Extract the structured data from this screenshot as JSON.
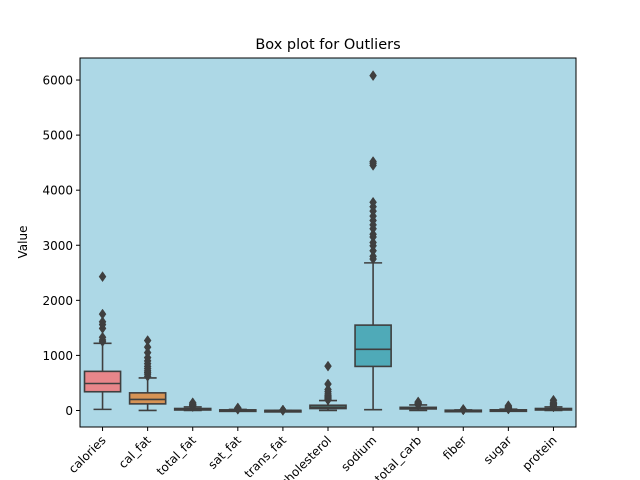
{
  "chart_data": {
    "type": "box",
    "title": "Box plot for Outliers",
    "xlabel": "",
    "ylabel": "Value",
    "ylim": [
      -300,
      6400
    ],
    "yticks": [
      0,
      1000,
      2000,
      3000,
      4000,
      5000,
      6000
    ],
    "categories": [
      "calories",
      "cal_fat",
      "total_fat",
      "sat_fat",
      "trans_fat",
      "cholesterol",
      "sodium",
      "total_carb",
      "fiber",
      "sugar",
      "protein"
    ],
    "background_color": "#add8e6",
    "boxes": [
      {
        "name": "calories",
        "color": "#e8868a",
        "whisker_low": 20,
        "q1": 340,
        "median": 490,
        "q3": 710,
        "whisker_high": 1220,
        "outliers": [
          1250,
          1280,
          1330,
          1490,
          1560,
          1610,
          1750,
          2430
        ]
      },
      {
        "name": "cal_fat",
        "color": "#d69355",
        "whisker_low": 0,
        "q1": 120,
        "median": 200,
        "q3": 320,
        "whisker_high": 590,
        "outliers": [
          620,
          660,
          690,
          720,
          760,
          800,
          850,
          900,
          960,
          1050,
          1150,
          1270
        ]
      },
      {
        "name": "total_fat",
        "color": "#a0a35a",
        "whisker_low": 0,
        "q1": 14,
        "median": 23,
        "q3": 36,
        "whisker_high": 65,
        "outliers": [
          70,
          80,
          90,
          100,
          110,
          120,
          141
        ]
      },
      {
        "name": "sat_fat",
        "color": "#5fae63",
        "whisker_low": 0,
        "q1": 4,
        "median": 7,
        "q3": 11,
        "whisker_high": 20,
        "outliers": [
          22,
          25,
          28,
          32,
          40,
          47
        ]
      },
      {
        "name": "trans_fat",
        "color": "#56b08b",
        "whisker_low": 0,
        "q1": 0,
        "median": 0,
        "q3": 1,
        "whisker_high": 2,
        "outliers": [
          3,
          4,
          5,
          6,
          8
        ]
      },
      {
        "name": "cholesterol",
        "color": "#56a9a2",
        "whisker_low": 0,
        "q1": 35,
        "median": 60,
        "q3": 95,
        "whisker_high": 180,
        "outliers": [
          190,
          200,
          215,
          230,
          250,
          270,
          300,
          340,
          380,
          480,
          805
        ]
      },
      {
        "name": "sodium",
        "color": "#4faab8",
        "whisker_low": 15,
        "q1": 800,
        "median": 1110,
        "q3": 1550,
        "whisker_high": 2680,
        "outliers": [
          2750,
          2800,
          2900,
          2990,
          3050,
          3150,
          3200,
          3300,
          3370,
          3450,
          3530,
          3620,
          3700,
          3780,
          4450,
          4490,
          4520,
          6080
        ]
      },
      {
        "name": "total_carb",
        "color": "#6fa7d9",
        "whisker_low": 0,
        "q1": 28,
        "median": 44,
        "q3": 57,
        "whisker_high": 100,
        "outliers": [
          105,
          110,
          115,
          120,
          130,
          141,
          156
        ]
      },
      {
        "name": "fiber",
        "color": "#9f9ee3",
        "whisker_low": 0,
        "q1": 2,
        "median": 3,
        "q3": 5,
        "whisker_high": 9,
        "outliers": [
          10,
          11,
          12,
          14,
          16,
          18,
          19
        ]
      },
      {
        "name": "sugar",
        "color": "#cf8ee0",
        "whisker_low": 0,
        "q1": 4,
        "median": 7,
        "q3": 12,
        "whisker_high": 24,
        "outliers": [
          26,
          30,
          35,
          40,
          50,
          60,
          70,
          87
        ]
      },
      {
        "name": "protein",
        "color": "#e488c3",
        "whisker_low": 1,
        "q1": 17,
        "median": 27,
        "q3": 36,
        "whisker_high": 64,
        "outliers": [
          66,
          70,
          75,
          80,
          90,
          100,
          110,
          120,
          130,
          150,
          186
        ]
      }
    ]
  }
}
